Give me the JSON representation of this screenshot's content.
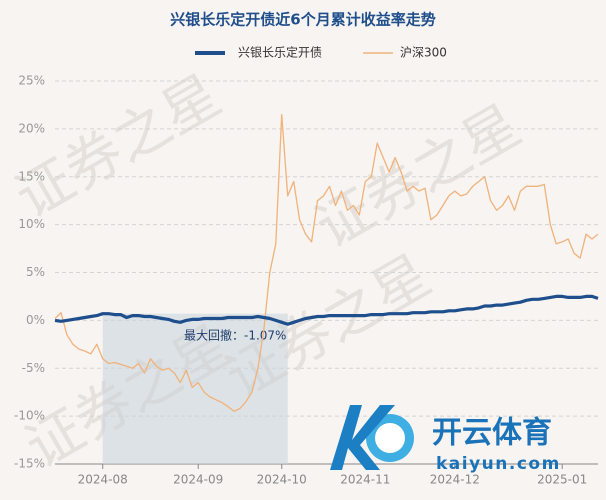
{
  "chart_data": {
    "type": "line",
    "title": "兴银长乐定开债近6个月累计收益率走势",
    "categories": [
      null,
      null,
      null,
      null,
      null,
      null,
      null,
      null,
      "2024-08",
      null,
      null,
      null,
      null,
      null,
      null,
      null,
      null,
      null,
      null,
      null,
      null,
      null,
      null,
      null,
      "2024-09",
      null,
      null,
      null,
      null,
      null,
      null,
      null,
      null,
      null,
      null,
      null,
      null,
      null,
      "2024-10",
      null,
      null,
      null,
      null,
      null,
      null,
      null,
      null,
      null,
      null,
      null,
      null,
      null,
      "2024-11",
      null,
      null,
      null,
      null,
      null,
      null,
      null,
      null,
      null,
      null,
      null,
      null,
      null,
      null,
      "2024-12",
      null,
      null,
      null,
      null,
      null,
      null,
      null,
      null,
      null,
      null,
      null,
      null,
      null,
      null,
      null,
      null,
      null,
      "2025-01",
      null,
      null,
      null,
      null,
      null,
      null
    ],
    "series": [
      {
        "name": "兴银长乐定开债",
        "color": "#1f4e8c",
        "values": [
          0,
          -0.1,
          0,
          0.1,
          0.2,
          0.3,
          0.4,
          0.5,
          0.7,
          0.7,
          0.6,
          0.6,
          0.3,
          0.5,
          0.5,
          0.4,
          0.4,
          0.3,
          0.2,
          0.1,
          -0.1,
          -0.2,
          0,
          0.1,
          0.1,
          0.2,
          0.2,
          0.2,
          0.2,
          0.3,
          0.3,
          0.3,
          0.3,
          0.3,
          0.4,
          0.3,
          0.2,
          0,
          -0.2,
          -0.4,
          -0.2,
          0,
          0.2,
          0.3,
          0.4,
          0.4,
          0.5,
          0.5,
          0.5,
          0.5,
          0.5,
          0.5,
          0.5,
          0.6,
          0.6,
          0.6,
          0.7,
          0.7,
          0.7,
          0.7,
          0.8,
          0.8,
          0.8,
          0.9,
          0.9,
          0.9,
          1.0,
          1.0,
          1.1,
          1.2,
          1.2,
          1.3,
          1.5,
          1.5,
          1.6,
          1.6,
          1.7,
          1.8,
          1.9,
          2.1,
          2.2,
          2.2,
          2.3,
          2.4,
          2.5,
          2.5,
          2.4,
          2.4,
          2.4,
          2.5,
          2.5,
          2.3
        ]
      },
      {
        "name": "沪深300",
        "color": "#f0b27a",
        "values": [
          0.2,
          0.8,
          -1.5,
          -2.5,
          -3,
          -3.2,
          -3.5,
          -2.5,
          -4,
          -4.5,
          -4.4,
          -4.6,
          -4.8,
          -5,
          -4.5,
          -5.5,
          -4,
          -4.8,
          -5.2,
          -5,
          -5.5,
          -6.5,
          -5.2,
          -7,
          -6.5,
          -7.5,
          -8,
          -8.3,
          -8.6,
          -9,
          -9.5,
          -9.2,
          -8.5,
          -7.5,
          -5,
          -1,
          5,
          8,
          21.5,
          13,
          14.5,
          10.5,
          9,
          8.2,
          12.5,
          13,
          14,
          12,
          13.5,
          11.5,
          12,
          11,
          14.5,
          15,
          18.5,
          17,
          15.5,
          17,
          15.5,
          13.5,
          14,
          13.5,
          13.8,
          10.5,
          11,
          12,
          13,
          13.5,
          13,
          13.2,
          14,
          14.5,
          15,
          12.5,
          11.5,
          12,
          13,
          11.5,
          13.5,
          14,
          14,
          14,
          14.2,
          10,
          8,
          8.2,
          8.5,
          7,
          6.5,
          9,
          8.5,
          9
        ]
      }
    ],
    "ylim": [
      -15,
      25
    ],
    "yticks": [
      {
        "value": -15,
        "label": "-15%"
      },
      {
        "value": -10,
        "label": "-10%"
      },
      {
        "value": -5,
        "label": "-5%"
      },
      {
        "value": 0,
        "label": "0%"
      },
      {
        "value": 5,
        "label": "5%"
      },
      {
        "value": 10,
        "label": "10%"
      },
      {
        "value": 15,
        "label": "15%"
      },
      {
        "value": 20,
        "label": "20%"
      },
      {
        "value": 25,
        "label": "25%"
      }
    ],
    "grid": true,
    "annotation": "最大回撤：-1.07%",
    "watermark": "证券之星",
    "logo": {
      "name": "开云体育",
      "url": "kaiyun.com"
    }
  }
}
